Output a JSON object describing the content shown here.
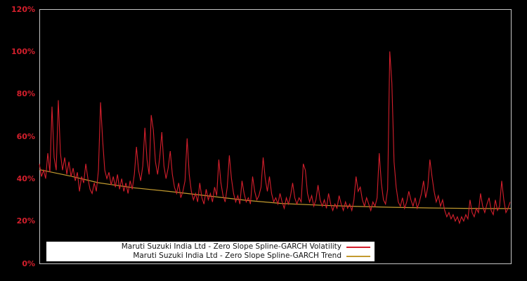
{
  "colors": {
    "background": "#000000",
    "plot_border": "#c6c6c6",
    "tick_label": "#d41f2c",
    "volatility_line": "#d41f2c",
    "trend_line": "#c39b2f",
    "legend_bg": "#ffffff",
    "legend_text": "#111111"
  },
  "chart_data": {
    "type": "line",
    "title": "",
    "xlabel": "",
    "ylabel": "",
    "ylim": [
      0,
      120
    ],
    "grid": false,
    "legend_position": "bottom-left-inside",
    "x_tick_labels": [],
    "y_tick_values": [
      0,
      20,
      40,
      60,
      80,
      100,
      120
    ],
    "y_tick_labels": [
      "0%",
      "20%",
      "40%",
      "60%",
      "80%",
      "100%",
      "120%"
    ],
    "series": [
      {
        "name": "Maruti Suzuki India Ltd - Zero Slope Spline-GARCH Volatility",
        "color": "#d41f2c",
        "unit": "%",
        "x_note": "evenly spaced samples left-to-right across plot",
        "values": [
          47,
          41,
          44,
          40,
          52,
          43,
          74,
          50,
          44,
          77,
          52,
          44,
          50,
          42,
          48,
          41,
          45,
          39,
          43,
          34,
          41,
          38,
          47,
          40,
          35,
          33,
          38,
          34,
          44,
          76,
          58,
          44,
          40,
          43,
          37,
          41,
          36,
          42,
          35,
          40,
          34,
          38,
          33,
          39,
          35,
          42,
          55,
          44,
          39,
          46,
          64,
          49,
          42,
          70,
          63,
          48,
          42,
          50,
          62,
          46,
          40,
          45,
          53,
          42,
          36,
          33,
          38,
          31,
          34,
          39,
          59,
          42,
          34,
          30,
          33,
          29,
          38,
          31,
          28,
          35,
          30,
          33,
          29,
          36,
          32,
          49,
          38,
          32,
          29,
          36,
          51,
          40,
          33,
          29,
          32,
          28,
          39,
          33,
          29,
          31,
          28,
          41,
          34,
          30,
          32,
          36,
          50,
          40,
          34,
          41,
          33,
          29,
          31,
          28,
          33,
          29,
          26,
          31,
          28,
          32,
          38,
          31,
          28,
          31,
          29,
          47,
          44,
          33,
          29,
          32,
          27,
          30,
          37,
          30,
          27,
          30,
          26,
          33,
          28,
          25,
          28,
          26,
          32,
          28,
          25,
          29,
          26,
          28,
          25,
          30,
          41,
          34,
          36,
          30,
          27,
          31,
          28,
          25,
          29,
          27,
          31,
          52,
          38,
          30,
          28,
          35,
          100,
          85,
          48,
          36,
          29,
          27,
          31,
          26,
          29,
          34,
          30,
          27,
          31,
          26,
          29,
          33,
          39,
          31,
          36,
          49,
          41,
          34,
          29,
          32,
          27,
          30,
          25,
          22,
          24,
          21,
          23,
          20,
          22,
          19,
          22,
          20,
          23,
          21,
          30,
          24,
          22,
          26,
          24,
          33,
          27,
          24,
          28,
          31,
          25,
          23,
          30,
          25,
          27,
          39,
          30,
          24,
          26,
          29
        ]
      },
      {
        "name": "Maruti Suzuki India Ltd - Zero Slope Spline-GARCH Trend",
        "color": "#c39b2f",
        "unit": "%",
        "x_note": "anchors as [fraction_of_x_axis, value]",
        "anchors": [
          [
            0,
            44.3
          ],
          [
            0.066,
            41.2
          ],
          [
            0.125,
            38.1
          ],
          [
            0.2,
            35.7
          ],
          [
            0.274,
            34.0
          ],
          [
            0.334,
            32.5
          ],
          [
            0.438,
            29.8
          ],
          [
            0.513,
            28.3
          ],
          [
            0.602,
            27.4
          ],
          [
            0.677,
            26.9
          ],
          [
            0.751,
            26.5
          ],
          [
            0.826,
            26.2
          ],
          [
            0.9,
            26.0
          ],
          [
            0.96,
            25.9
          ],
          [
            1,
            25.9
          ]
        ]
      }
    ]
  },
  "legend": {
    "rows": [
      {
        "label": "Maruti Suzuki India Ltd - Zero Slope Spline-GARCH Volatility"
      },
      {
        "label": "Maruti Suzuki India Ltd - Zero Slope Spline-GARCH Trend"
      }
    ]
  }
}
